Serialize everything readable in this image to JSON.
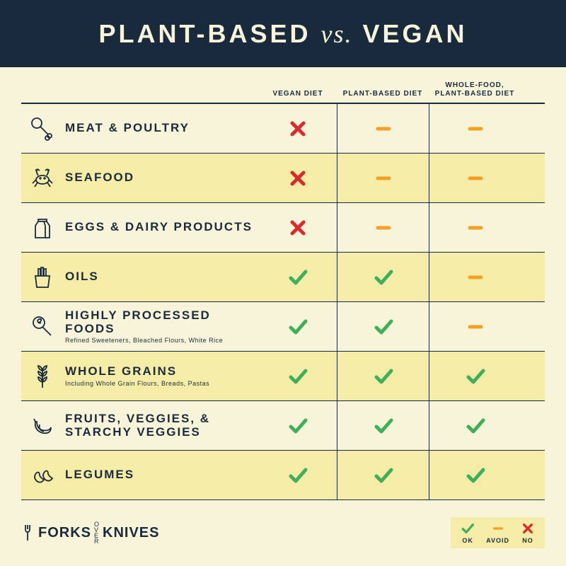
{
  "colors": {
    "bg": "#f7f4d9",
    "alt_bg": "#f5eda7",
    "header_bg": "#1a2a3d",
    "text": "#1a2a3d",
    "green": "#3fb05a",
    "orange": "#f4a023",
    "red": "#d92b2b"
  },
  "title": {
    "part1": "PLANT-BASED",
    "vs": "vs.",
    "part2": "VEGAN"
  },
  "columns": [
    "VEGAN DIET",
    "PLANT-BASED DIET",
    "WHOLE-FOOD, PLANT-BASED DIET"
  ],
  "rows": [
    {
      "icon": "meat",
      "label": "MEAT & POULTRY",
      "sub": "",
      "cells": [
        "no",
        "avoid",
        "avoid"
      ],
      "alt": false
    },
    {
      "icon": "crab",
      "label": "SEAFOOD",
      "sub": "",
      "cells": [
        "no",
        "avoid",
        "avoid"
      ],
      "alt": true
    },
    {
      "icon": "milk",
      "label": "EGGS & DAIRY PRODUCTS",
      "sub": "",
      "cells": [
        "no",
        "avoid",
        "avoid"
      ],
      "alt": false
    },
    {
      "icon": "fries",
      "label": "OILS",
      "sub": "",
      "cells": [
        "ok",
        "ok",
        "avoid"
      ],
      "alt": true
    },
    {
      "icon": "lollipop",
      "label": "HIGHLY PROCESSED FOODS",
      "sub": "Refined Sweeteners, Bleached Flours, White Rice",
      "cells": [
        "ok",
        "ok",
        "avoid"
      ],
      "alt": false
    },
    {
      "icon": "wheat",
      "label": "WHOLE GRAINS",
      "sub": "Including Whole Grain Flours, Breads, Pastas",
      "cells": [
        "ok",
        "ok",
        "ok"
      ],
      "alt": true
    },
    {
      "icon": "banana",
      "label": "FRUITS, VEGGIES, & STARCHY VEGGIES",
      "sub": "",
      "cells": [
        "ok",
        "ok",
        "ok"
      ],
      "alt": false
    },
    {
      "icon": "beans",
      "label": "LEGUMES",
      "sub": "",
      "cells": [
        "ok",
        "ok",
        "ok"
      ],
      "alt": true
    }
  ],
  "brand": {
    "part1": "FORKS",
    "mid_top": "OVER",
    "mid_bot": "",
    "part2": "KNIVES"
  },
  "legend": [
    {
      "mark": "ok",
      "label": "OK"
    },
    {
      "mark": "avoid",
      "label": "AVOID"
    },
    {
      "mark": "no",
      "label": "NO"
    }
  ]
}
